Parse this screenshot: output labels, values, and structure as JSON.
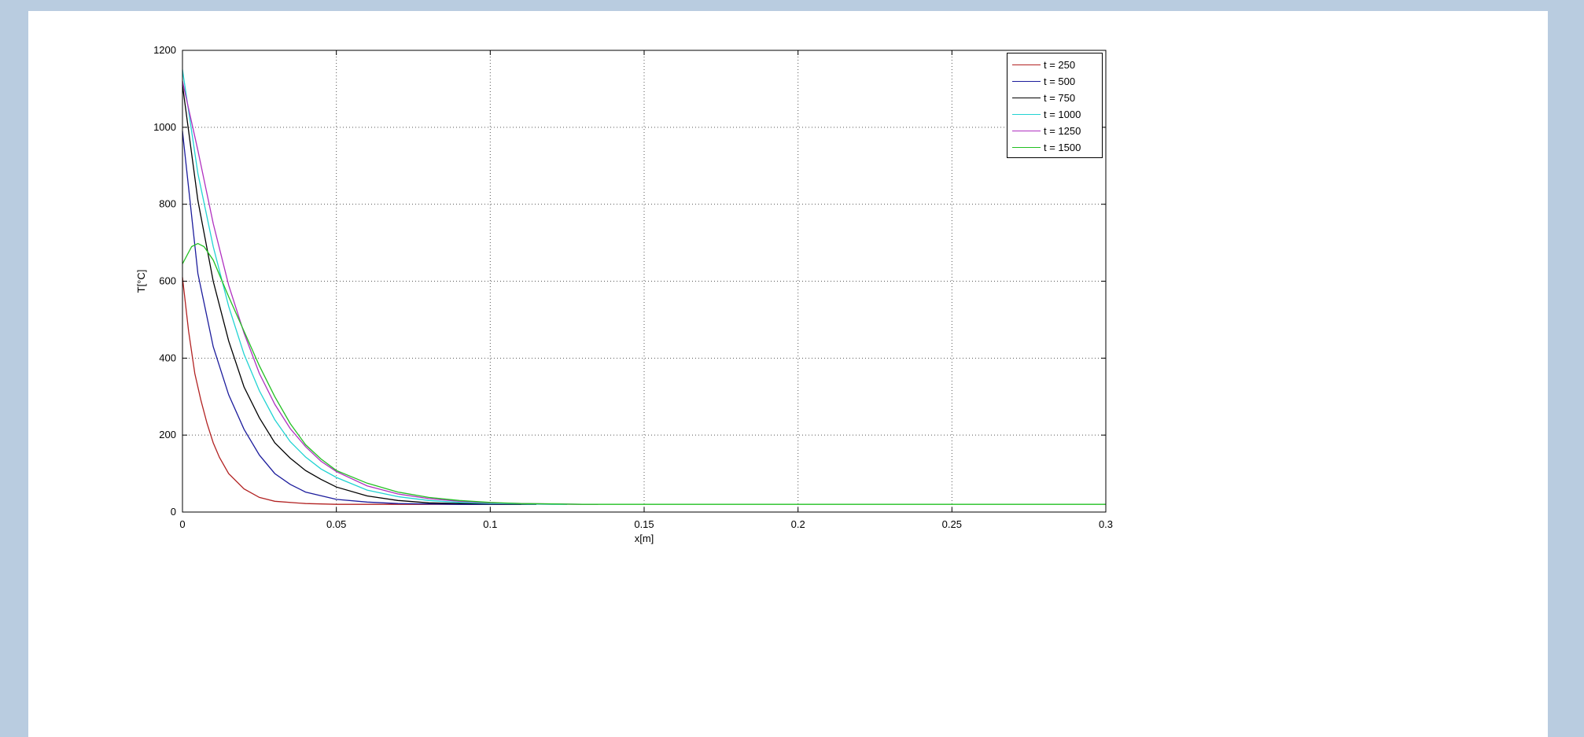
{
  "chart_data": {
    "type": "line",
    "title": "",
    "xlabel": "x[m]",
    "ylabel": "T[°C]",
    "xlim": [
      0,
      0.3
    ],
    "ylim": [
      0,
      1200
    ],
    "x_ticks": [
      "0",
      "0.05",
      "0.1",
      "0.15",
      "0.2",
      "0.25",
      "0.3"
    ],
    "y_ticks": [
      "0",
      "200",
      "400",
      "600",
      "800",
      "1000",
      "1200"
    ],
    "grid": true,
    "legend_position": "top-right",
    "series": [
      {
        "name": "t = 250",
        "color": "#b22222",
        "x": [
          0,
          0.002,
          0.004,
          0.006,
          0.008,
          0.01,
          0.012,
          0.015,
          0.02,
          0.025,
          0.03,
          0.04,
          0.05,
          0.06,
          0.07,
          0.08,
          0.09,
          0.1,
          0.11
        ],
        "y": [
          610,
          470,
          360,
          290,
          230,
          180,
          142,
          100,
          60,
          38,
          28,
          22,
          20,
          20,
          20,
          20,
          20,
          20,
          20
        ]
      },
      {
        "name": "t = 500",
        "color": "#1c1c9c",
        "x": [
          0,
          0.005,
          0.01,
          0.015,
          0.02,
          0.025,
          0.03,
          0.035,
          0.04,
          0.05,
          0.06,
          0.07,
          0.08,
          0.09,
          0.1,
          0.11
        ],
        "y": [
          990,
          620,
          430,
          305,
          215,
          148,
          100,
          72,
          52,
          33,
          26,
          22,
          21,
          20,
          20,
          20
        ]
      },
      {
        "name": "t = 750",
        "color": "#000000",
        "x": [
          0,
          0.005,
          0.01,
          0.015,
          0.02,
          0.025,
          0.03,
          0.035,
          0.04,
          0.045,
          0.05,
          0.06,
          0.07,
          0.08,
          0.09,
          0.1,
          0.11,
          0.115
        ],
        "y": [
          1110,
          810,
          600,
          445,
          325,
          245,
          180,
          140,
          108,
          85,
          65,
          42,
          30,
          24,
          22,
          21,
          20,
          20
        ]
      },
      {
        "name": "t = 1000",
        "color": "#22d3d3",
        "x": [
          0,
          0.005,
          0.01,
          0.015,
          0.02,
          0.025,
          0.03,
          0.035,
          0.04,
          0.045,
          0.05,
          0.06,
          0.07,
          0.08,
          0.09,
          0.1,
          0.11,
          0.12,
          0.125
        ],
        "y": [
          1150,
          880,
          690,
          535,
          410,
          315,
          240,
          183,
          143,
          112,
          90,
          57,
          40,
          30,
          25,
          22,
          21,
          20,
          20
        ]
      },
      {
        "name": "t = 1250",
        "color": "#b030c0",
        "x": [
          0,
          0.005,
          0.01,
          0.015,
          0.02,
          0.025,
          0.03,
          0.035,
          0.04,
          0.045,
          0.05,
          0.06,
          0.07,
          0.08,
          0.09,
          0.1,
          0.11,
          0.12,
          0.13,
          0.135
        ],
        "y": [
          1120,
          940,
          750,
          590,
          465,
          360,
          280,
          217,
          170,
          132,
          105,
          68,
          47,
          35,
          28,
          24,
          22,
          21,
          20,
          20
        ]
      },
      {
        "name": "t = 1500",
        "color": "#22c022",
        "x": [
          0,
          0.003,
          0.005,
          0.007,
          0.01,
          0.015,
          0.02,
          0.025,
          0.03,
          0.035,
          0.04,
          0.045,
          0.05,
          0.06,
          0.07,
          0.08,
          0.09,
          0.1,
          0.11,
          0.12,
          0.13,
          0.15,
          0.2,
          0.25,
          0.3
        ],
        "y": [
          645,
          690,
          698,
          690,
          655,
          560,
          470,
          380,
          300,
          230,
          175,
          138,
          108,
          75,
          52,
          38,
          30,
          25,
          22,
          21,
          20,
          20,
          20,
          20,
          20
        ]
      }
    ]
  }
}
